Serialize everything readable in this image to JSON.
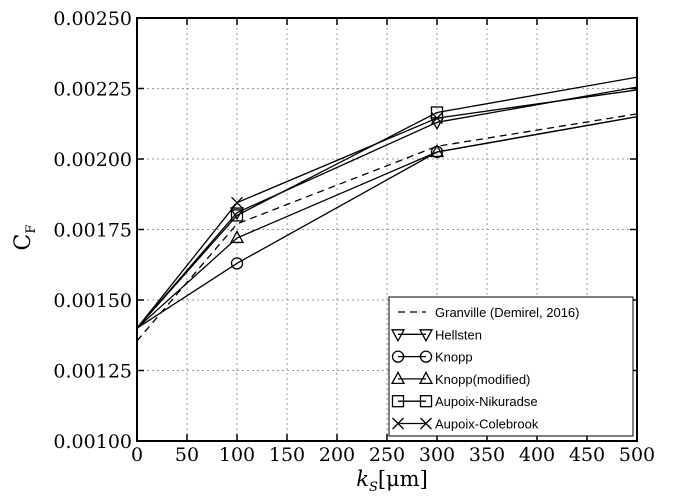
{
  "chart_data": {
    "type": "line",
    "xlabel": "k_S[μm]",
    "xlabel_main": "k",
    "xlabel_sub": "S",
    "xlabel_unit": "[μm]",
    "ylabel": "C_F",
    "ylabel_main": "C",
    "ylabel_sub": "F",
    "xlim": [
      0,
      500
    ],
    "ylim": [
      0.001,
      0.0025
    ],
    "x_ticks": [
      "0",
      "50",
      "100",
      "150",
      "200",
      "250",
      "300",
      "350",
      "400",
      "450",
      "500"
    ],
    "y_ticks": [
      "0.00100",
      "0.00125",
      "0.00150",
      "0.00175",
      "0.00200",
      "0.00225",
      "0.00250"
    ],
    "grid": true,
    "legend_position": "bottom-right",
    "series": [
      {
        "name": "Granville (Demirel, 2016)",
        "marker": "none",
        "dash": "dashed",
        "x": [
          0,
          100,
          300,
          500
        ],
        "y": [
          0.001355,
          0.00177,
          0.002045,
          0.00216
        ]
      },
      {
        "name": "Hellsten",
        "marker": "triangle-down",
        "dash": "solid",
        "x": [
          0,
          100,
          300,
          500
        ],
        "y": [
          0.0014,
          0.00181,
          0.00213,
          0.002255
        ]
      },
      {
        "name": "Knopp",
        "marker": "circle",
        "dash": "solid",
        "x": [
          0,
          100,
          300,
          500
        ],
        "y": [
          0.0014,
          0.00163,
          0.002025,
          0.00215
        ]
      },
      {
        "name": "Knopp(modified)",
        "marker": "triangle-up",
        "dash": "solid",
        "x": [
          0,
          100,
          300,
          500
        ],
        "y": [
          0.0014,
          0.00172,
          0.002025,
          0.00215
        ]
      },
      {
        "name": "Aupoix-Nikuradse",
        "marker": "square",
        "dash": "solid",
        "x": [
          0,
          100,
          300,
          500
        ],
        "y": [
          0.0014,
          0.0018,
          0.002165,
          0.00229
        ]
      },
      {
        "name": "Aupoix-Colebrook",
        "marker": "x",
        "dash": "solid",
        "x": [
          0,
          100,
          300,
          500
        ],
        "y": [
          0.0014,
          0.001845,
          0.002145,
          0.002245
        ]
      }
    ]
  }
}
